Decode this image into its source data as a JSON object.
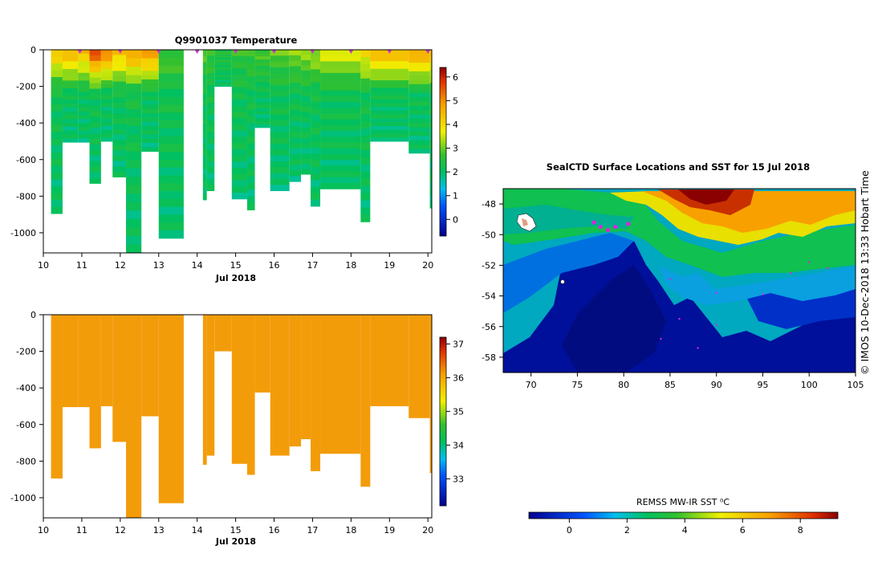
{
  "chart_data": [
    {
      "type": "heatmap",
      "title": "Q9901037  Temperature",
      "xlabel": "Jul 2018",
      "ylabel": "",
      "xlim": [
        10,
        20.1
      ],
      "ylim": [
        -1110,
        0
      ],
      "x_ticks": [
        "10",
        "11",
        "12",
        "13",
        "14",
        "15",
        "16",
        "17",
        "18",
        "19",
        "20"
      ],
      "y_ticks": [
        "0",
        "-200",
        "-400",
        "-600",
        "-800",
        "-1000"
      ],
      "colorbar": {
        "min": -0.7,
        "max": 6.4,
        "ticks": [
          "0",
          "1",
          "2",
          "3",
          "4",
          "5",
          "6"
        ]
      },
      "profiles": [
        {
          "x0": 10.2,
          "x1": 10.5,
          "depth": 895,
          "t_surface": 4.2
        },
        {
          "x0": 10.5,
          "x1": 10.9,
          "depth": 505,
          "t_surface": 4.6
        },
        {
          "x0": 10.9,
          "x1": 11.2,
          "depth": 505,
          "t_surface": 4.4
        },
        {
          "x0": 11.2,
          "x1": 11.5,
          "depth": 730,
          "t_surface": 5.6
        },
        {
          "x0": 11.5,
          "x1": 11.8,
          "depth": 500,
          "t_surface": 5.2
        },
        {
          "x0": 11.8,
          "x1": 12.15,
          "depth": 695,
          "t_surface": 4.4
        },
        {
          "x0": 12.15,
          "x1": 12.55,
          "depth": 1110,
          "t_surface": 4.6
        },
        {
          "x0": 12.55,
          "x1": 13.0,
          "depth": 555,
          "t_surface": 5.0
        },
        {
          "x0": 13.0,
          "x1": 13.65,
          "depth": 1030,
          "t_surface": 2.8
        },
        {
          "x0": 14.15,
          "x1": 14.25,
          "depth": 820,
          "t_surface": 2.8
        },
        {
          "x0": 14.25,
          "x1": 14.45,
          "depth": 770,
          "t_surface": 2.7
        },
        {
          "x0": 14.45,
          "x1": 14.9,
          "depth": 200,
          "t_surface": 2.5
        },
        {
          "x0": 14.9,
          "x1": 15.3,
          "depth": 815,
          "t_surface": 2.6
        },
        {
          "x0": 15.3,
          "x1": 15.5,
          "depth": 875,
          "t_surface": 2.7
        },
        {
          "x0": 15.5,
          "x1": 15.9,
          "depth": 425,
          "t_surface": 2.8
        },
        {
          "x0": 15.9,
          "x1": 16.4,
          "depth": 770,
          "t_surface": 2.9
        },
        {
          "x0": 16.4,
          "x1": 16.7,
          "depth": 720,
          "t_surface": 3.1
        },
        {
          "x0": 16.7,
          "x1": 16.95,
          "depth": 680,
          "t_surface": 3.2
        },
        {
          "x0": 16.95,
          "x1": 17.2,
          "depth": 855,
          "t_surface": 3.3
        },
        {
          "x0": 17.2,
          "x1": 18.25,
          "depth": 760,
          "t_surface": 3.6
        },
        {
          "x0": 18.25,
          "x1": 18.5,
          "depth": 940,
          "t_surface": 4.0
        },
        {
          "x0": 18.5,
          "x1": 19.5,
          "depth": 500,
          "t_surface": 4.6
        },
        {
          "x0": 19.5,
          "x1": 20.05,
          "depth": 565,
          "t_surface": 4.8
        },
        {
          "x0": 20.05,
          "x1": 20.1,
          "depth": 865,
          "t_surface": 4.5
        }
      ],
      "markers_x": [
        10.95,
        12.0,
        13.0,
        14.0,
        15.0,
        16.0,
        17.0,
        18.0,
        19.0,
        20.0
      ],
      "colors": {
        "marker": "#cc33cc"
      }
    },
    {
      "type": "heatmap",
      "title": "",
      "xlabel": "Jul 2018",
      "ylabel": "",
      "xlim": [
        10,
        20.1
      ],
      "ylim": [
        -1110,
        0
      ],
      "x_ticks": [
        "10",
        "11",
        "12",
        "13",
        "14",
        "15",
        "16",
        "17",
        "18",
        "19",
        "20"
      ],
      "y_ticks": [
        "0",
        "-200",
        "-400",
        "-600",
        "-800",
        "-1000"
      ],
      "colorbar": {
        "min": 32.2,
        "max": 37.2,
        "ticks": [
          "33",
          "34",
          "35",
          "36",
          "37"
        ]
      },
      "fill_value": 35.9,
      "colors": {
        "fill": "#f39c0a"
      }
    },
    {
      "type": "heatmap",
      "title": "SealCTD Surface Locations and SST for 15 Jul 2018",
      "xlabel": "",
      "ylabel": "",
      "xlim": [
        67,
        105
      ],
      "ylim": [
        -59,
        -47
      ],
      "x_ticks": [
        "70",
        "75",
        "80",
        "85",
        "90",
        "95",
        "100",
        "105"
      ],
      "y_ticks": [
        "-48",
        "-50",
        "-52",
        "-54",
        "-56",
        "-58"
      ],
      "colorbar": {
        "label": "REMSS MW-IR SST ⁰C",
        "min": -1.4,
        "max": 9.3,
        "ticks": [
          "0",
          "2",
          "4",
          "6",
          "8"
        ]
      },
      "track_points": [
        [
          76.8,
          -49.2
        ],
        [
          77.5,
          -49.5
        ],
        [
          78.3,
          -49.7
        ],
        [
          79.1,
          -49.5
        ],
        [
          80.5,
          -49.3
        ],
        [
          85,
          -52.9
        ],
        [
          90,
          -53.8
        ],
        [
          95,
          -53.9
        ],
        [
          98,
          -52.5
        ],
        [
          100,
          -51.8
        ],
        [
          102,
          -52.2
        ],
        [
          86,
          -55.5
        ],
        [
          90,
          -55.9
        ],
        [
          84,
          -56.8
        ],
        [
          88,
          -57.4
        ]
      ],
      "colors": {
        "track": "#dd22dd"
      }
    }
  ],
  "credit": "© IMOS 10-Dec-2018 13:33 Hobart Time"
}
